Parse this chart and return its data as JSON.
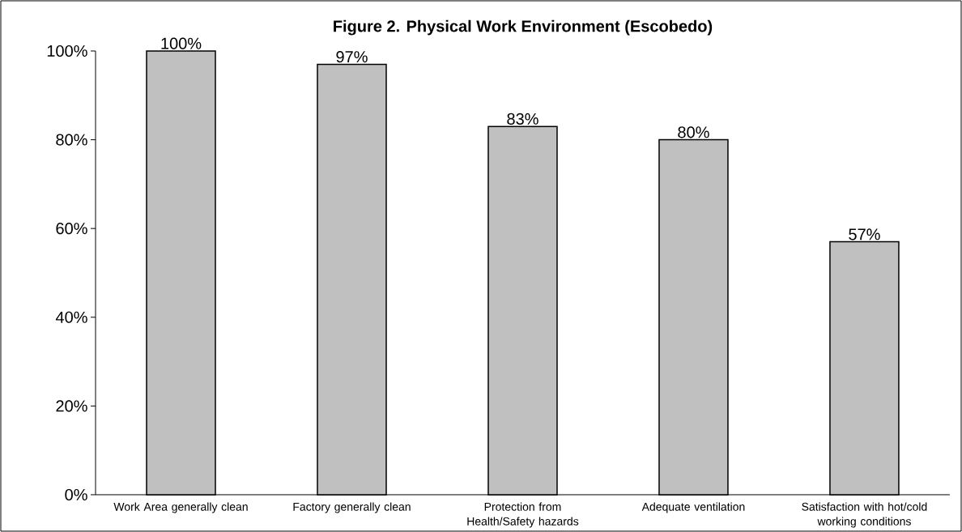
{
  "chart_data": {
    "type": "bar",
    "title": "Figure 2. Physical Work Environment (Escobedo)",
    "categories": [
      "Work Area generally clean",
      "Factory generally clean",
      "Protection from Health/Safety hazards",
      "Adequate ventilation",
      "Satisfaction with hot/cold working conditions"
    ],
    "values": [
      100,
      97,
      83,
      80,
      57
    ],
    "value_labels": [
      "100%",
      "97%",
      "83%",
      "80%",
      "57%"
    ],
    "color": "#c0c0c0",
    "ylim": [
      0,
      100
    ],
    "yticks": [
      {
        "value": 0,
        "label": "0%"
      },
      {
        "value": 20,
        "label": "20%"
      },
      {
        "value": 40,
        "label": "40%"
      },
      {
        "value": 60,
        "label": "60%"
      },
      {
        "value": 80,
        "label": "80%"
      },
      {
        "value": 100,
        "label": "100%"
      }
    ],
    "grid": false
  }
}
